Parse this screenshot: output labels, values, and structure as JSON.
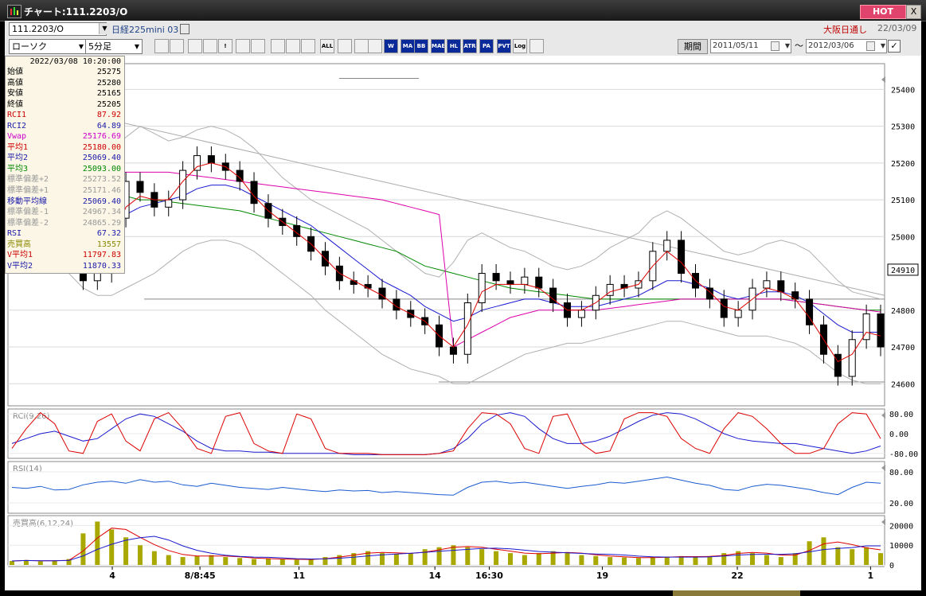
{
  "window": {
    "title": "チャート:111.2203/O",
    "hot_label": "HOT",
    "close_label": "X"
  },
  "infobar": {
    "code": "111.2203/O",
    "name": "日経225mini 03",
    "market": "大阪日通し",
    "date": "22/03/09"
  },
  "toolbar": {
    "chart_type": "ローソク",
    "interval": "5分足",
    "buttons": [
      "",
      "",
      "",
      "",
      "!",
      "",
      "",
      "",
      "",
      "",
      "ALL",
      "",
      "",
      "",
      "W\nMF",
      "MA",
      "BB",
      "MAE",
      "HL",
      "ATR",
      "PA\nRA",
      "PVT",
      "Log",
      ""
    ],
    "period_label": "期間",
    "from_date": "2011/05/11",
    "to_date": "2012/03/06",
    "tilde": "～",
    "checked": "✓"
  },
  "info_panel": {
    "datetime": "2022/03/08 10:20:00",
    "rows": [
      {
        "label": "始値",
        "value": "25275",
        "color": "#000000"
      },
      {
        "label": "高値",
        "value": "25280",
        "color": "#000000"
      },
      {
        "label": "安値",
        "value": "25165",
        "color": "#000000"
      },
      {
        "label": "終値",
        "value": "25205",
        "color": "#000000"
      },
      {
        "label": "RCI1",
        "value": "87.92",
        "color": "#cc0000"
      },
      {
        "label": "RCI2",
        "value": "64.89",
        "color": "#1a1aa8"
      },
      {
        "label": "Vwap",
        "value": "25176.69",
        "color": "#cc00cc"
      },
      {
        "label": "平均1",
        "value": "25180.00",
        "color": "#cc0000"
      },
      {
        "label": "平均2",
        "value": "25069.40",
        "color": "#1a1aa8"
      },
      {
        "label": "平均3",
        "value": "25093.00",
        "color": "#008800"
      },
      {
        "label": "標準偏差+2",
        "value": "25273.52",
        "color": "#999999"
      },
      {
        "label": "標準偏差+1",
        "value": "25171.46",
        "color": "#999999"
      },
      {
        "label": "移動平均線",
        "value": "25069.40",
        "color": "#1a1aa8"
      },
      {
        "label": "標準偏差-1",
        "value": "24967.34",
        "color": "#999999"
      },
      {
        "label": "標準偏差-2",
        "value": "24865.29",
        "color": "#999999"
      },
      {
        "label": "RSI",
        "value": "67.32",
        "color": "#1a1aa8"
      },
      {
        "label": "売買高",
        "value": "13557",
        "color": "#888800"
      },
      {
        "label": "V平均1",
        "value": "11797.83",
        "color": "#cc0000"
      },
      {
        "label": "V平均2",
        "value": "11870.33",
        "color": "#1a1aa8"
      }
    ]
  },
  "chart_data": [
    {
      "type": "candlestick",
      "price_labels": [
        "25400",
        "25300",
        "25200",
        "25100",
        "25000",
        "24910",
        "24800",
        "24700",
        "24600"
      ],
      "price_ticks": [
        25400,
        25300,
        25200,
        25100,
        25000,
        24800,
        24700,
        24600
      ],
      "ylim": [
        24540,
        25470
      ],
      "current_price": 24910,
      "x_labels": [
        {
          "label": "4",
          "pos": 0.119
        },
        {
          "label": "8/8:45",
          "pos": 0.219
        },
        {
          "label": "11",
          "pos": 0.332
        },
        {
          "label": "14",
          "pos": 0.487
        },
        {
          "label": "16:30",
          "pos": 0.549
        },
        {
          "label": "19",
          "pos": 0.678
        },
        {
          "label": "22",
          "pos": 0.832
        },
        {
          "label": "1",
          "pos": 0.984
        }
      ],
      "close_path": [
        25120,
        25110,
        25090,
        25060,
        25030,
        24880,
        24900,
        25050,
        25150,
        25120,
        25080,
        25100,
        25180,
        25220,
        25200,
        25180,
        25150,
        25090,
        25050,
        25030,
        25000,
        24960,
        24920,
        24880,
        24870,
        24860,
        24830,
        24800,
        24780,
        24760,
        24700,
        24680,
        24820,
        24900,
        24880,
        24870,
        24890,
        24860,
        24820,
        24780,
        24800,
        24840,
        24870,
        24860,
        24880,
        24960,
        24990,
        24900,
        24860,
        24830,
        24780,
        24800,
        24860,
        24880,
        24850,
        24830,
        24760,
        24680,
        24620,
        24720,
        24790,
        24700
      ],
      "ma_short": [
        25100,
        25090,
        25070,
        25040,
        25000,
        24920,
        24900,
        24980,
        25080,
        25110,
        25100,
        25100,
        25150,
        25190,
        25200,
        25190,
        25160,
        25110,
        25070,
        25040,
        25010,
        24980,
        24940,
        24900,
        24880,
        24860,
        24840,
        24810,
        24790,
        24770,
        24730,
        24700,
        24760,
        24850,
        24870,
        24870,
        24870,
        24860,
        24830,
        24800,
        24800,
        24820,
        24850,
        24860,
        24870,
        24920,
        24960,
        24930,
        24880,
        24850,
        24810,
        24800,
        24830,
        24860,
        24850,
        24830,
        24780,
        24720,
        24660,
        24680,
        24740,
        24730
      ],
      "ma_mid": [
        25140,
        25120,
        25100,
        25080,
        25050,
        25020,
        25010,
        25030,
        25060,
        25080,
        25090,
        25100,
        25110,
        25130,
        25140,
        25140,
        25130,
        25110,
        25090,
        25070,
        25050,
        25030,
        25000,
        24970,
        24940,
        24910,
        24880,
        24860,
        24840,
        24810,
        24790,
        24770,
        24780,
        24800,
        24810,
        24820,
        24830,
        24830,
        24820,
        24810,
        24810,
        24810,
        24820,
        24830,
        24840,
        24860,
        24880,
        24880,
        24870,
        24860,
        24840,
        24830,
        24840,
        24850,
        24850,
        24840,
        24820,
        24790,
        24760,
        24740,
        24740,
        24740
      ],
      "ma_long": [
        25230,
        25200,
        25180,
        25160,
        25150,
        25130,
        25120,
        25110,
        25110,
        25100,
        25100,
        25095,
        25090,
        25085,
        25080,
        25075,
        25070,
        25060,
        25050,
        25040,
        25030,
        25020,
        25010,
        25000,
        24990,
        24980,
        24970,
        24960,
        24940,
        24920,
        24910,
        24900,
        24890,
        24880,
        24870,
        24860,
        24855,
        24850,
        24845,
        24840,
        24835,
        24830,
        24830,
        24830,
        24830,
        24830,
        24830,
        24830,
        24830,
        24830,
        24830,
        24830,
        24830,
        24830,
        24830,
        24825,
        24820,
        24815,
        24810,
        24805,
        24800,
        24800
      ],
      "vwap": [
        25220,
        25210,
        25200,
        25190,
        25185,
        25180,
        25175,
        25175,
        25175,
        25175,
        25175,
        25175,
        25170,
        25165,
        25160,
        25155,
        25150,
        25145,
        25140,
        25135,
        25130,
        25125,
        25120,
        25115,
        25110,
        25105,
        25100,
        25090,
        25080,
        25070,
        25060,
        24700,
        24720,
        24740,
        24760,
        24780,
        24790,
        24800,
        24800,
        24800,
        24800,
        24800,
        24805,
        24810,
        24815,
        24820,
        24825,
        24830,
        24830,
        24830,
        24830,
        24830,
        24830,
        24830,
        24830,
        24825,
        24820,
        24815,
        24810,
        24805,
        24800,
        24795
      ],
      "band_upper": [
        25300,
        25250,
        25200,
        25180,
        25170,
        25180,
        25200,
        25230,
        25270,
        25300,
        25280,
        25260,
        25270,
        25290,
        25300,
        25290,
        25270,
        25240,
        25200,
        25160,
        25130,
        25100,
        25080,
        25060,
        25040,
        25020,
        24990,
        24960,
        24930,
        24900,
        24890,
        24930,
        24990,
        25010,
        24990,
        24970,
        24960,
        24940,
        24920,
        24910,
        24920,
        24940,
        24970,
        24990,
        25010,
        25050,
        25070,
        25050,
        25020,
        24990,
        24960,
        24950,
        24960,
        24980,
        24990,
        24980,
        24960,
        24920,
        24880,
        24850,
        24840,
        24830
      ],
      "band_lower": [
        24980,
        24960,
        24940,
        24920,
        24900,
        24860,
        24840,
        24840,
        24860,
        24880,
        24900,
        24930,
        24960,
        24980,
        24990,
        24990,
        24980,
        24960,
        24930,
        24900,
        24870,
        24840,
        24800,
        24770,
        24740,
        24710,
        24680,
        24660,
        24640,
        24630,
        24620,
        24600,
        24600,
        24620,
        24640,
        24660,
        24680,
        24690,
        24700,
        24710,
        24710,
        24720,
        24730,
        24740,
        24750,
        24760,
        24770,
        24770,
        24760,
        24750,
        24740,
        24730,
        24730,
        24730,
        24720,
        24710,
        24690,
        24660,
        24630,
        24610,
        24600,
        24600
      ]
    },
    {
      "type": "line",
      "name": "RCI(9,26)",
      "y_labels": [
        "80.00",
        "0.00",
        "-80.00"
      ],
      "ylim": [
        -100,
        100
      ],
      "rci1": [
        -60,
        20,
        85,
        40,
        -70,
        -80,
        50,
        80,
        -30,
        -70,
        60,
        85,
        20,
        -60,
        -80,
        70,
        85,
        -40,
        -70,
        -80,
        80,
        60,
        -60,
        -80,
        -80,
        -80,
        -85,
        -85,
        -85,
        -85,
        -80,
        -70,
        20,
        85,
        80,
        40,
        -60,
        -80,
        70,
        80,
        -40,
        -80,
        -70,
        60,
        85,
        85,
        70,
        -20,
        -60,
        -80,
        20,
        85,
        70,
        20,
        -40,
        -80,
        -80,
        -60,
        40,
        85,
        80,
        -20
      ],
      "rci2": [
        -40,
        -20,
        0,
        10,
        -10,
        -30,
        -20,
        20,
        60,
        80,
        70,
        40,
        10,
        -30,
        -60,
        -70,
        -70,
        -75,
        -75,
        -80,
        -80,
        -80,
        -80,
        -80,
        -85,
        -85,
        -85,
        -85,
        -85,
        -85,
        -80,
        -60,
        -20,
        40,
        75,
        85,
        70,
        20,
        -20,
        -40,
        -40,
        -30,
        -10,
        20,
        50,
        75,
        85,
        80,
        60,
        30,
        0,
        -20,
        -30,
        -35,
        -40,
        -40,
        -50,
        -60,
        -70,
        -80,
        -70,
        -50
      ]
    },
    {
      "type": "line",
      "name": "RSI(14)",
      "y_labels": [
        "80.00",
        "20.00"
      ],
      "ylim": [
        0,
        100
      ],
      "rsi": [
        50,
        48,
        52,
        45,
        46,
        55,
        60,
        62,
        58,
        65,
        60,
        62,
        55,
        52,
        58,
        54,
        50,
        48,
        46,
        50,
        47,
        44,
        42,
        45,
        43,
        44,
        40,
        42,
        40,
        38,
        36,
        35,
        50,
        60,
        62,
        58,
        60,
        56,
        52,
        48,
        52,
        55,
        60,
        58,
        62,
        66,
        70,
        64,
        58,
        54,
        46,
        44,
        52,
        56,
        54,
        50,
        46,
        40,
        36,
        50,
        60,
        58
      ]
    },
    {
      "type": "bar",
      "name": "売買高(6,12,24)",
      "y_labels": [
        "20000",
        "10000",
        "0"
      ],
      "ylim": [
        0,
        25000
      ],
      "volume": [
        2000,
        2500,
        1800,
        2200,
        3000,
        16000,
        22000,
        18000,
        14000,
        10000,
        7000,
        5000,
        4000,
        4500,
        5000,
        4000,
        3500,
        3000,
        3200,
        2800,
        2600,
        3000,
        4000,
        5000,
        6000,
        7000,
        6000,
        5500,
        6000,
        8000,
        9000,
        10000,
        9000,
        8000,
        7000,
        6000,
        5000,
        6000,
        7000,
        6000,
        5000,
        4500,
        4000,
        3800,
        3500,
        4000,
        4200,
        4500,
        4000,
        4500,
        6000,
        7000,
        6000,
        5000,
        4000,
        6000,
        12000,
        14000,
        9000,
        8000,
        9000,
        6000
      ]
    }
  ]
}
